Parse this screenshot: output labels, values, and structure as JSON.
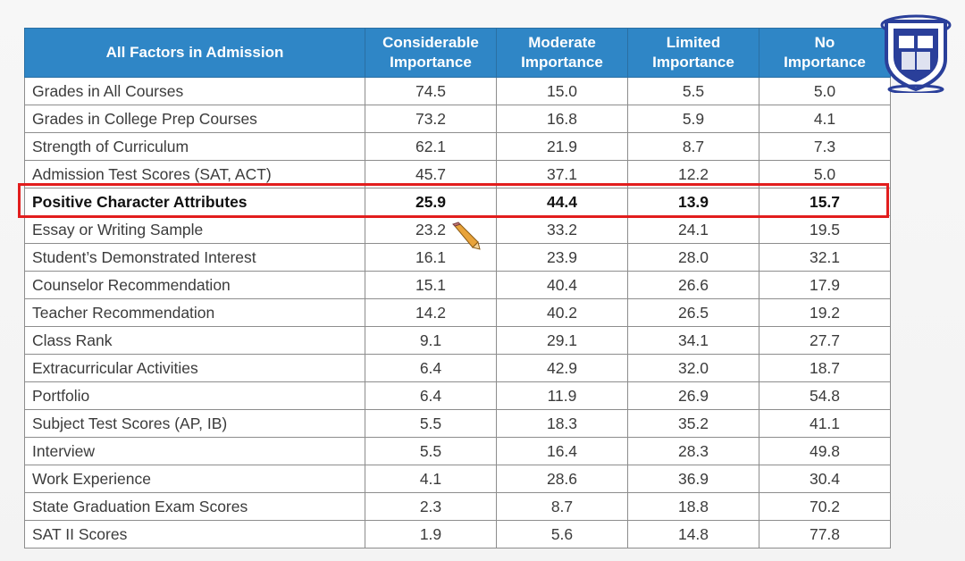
{
  "table": {
    "headers": {
      "factor": "All Factors in Admission",
      "considerable": [
        "Considerable",
        "Importance"
      ],
      "moderate": [
        "Moderate",
        "Importance"
      ],
      "limited": [
        "Limited",
        "Importance"
      ],
      "none": [
        "No",
        "Importance"
      ]
    },
    "rows": [
      {
        "factor": "Grades in All Courses",
        "considerable": "74.5",
        "moderate": "15.0",
        "limited": "5.5",
        "none": "5.0"
      },
      {
        "factor": "Grades in College Prep Courses",
        "considerable": "73.2",
        "moderate": "16.8",
        "limited": "5.9",
        "none": "4.1"
      },
      {
        "factor": "Strength of Curriculum",
        "considerable": "62.1",
        "moderate": "21.9",
        "limited": "8.7",
        "none": "7.3"
      },
      {
        "factor": "Admission Test Scores (SAT, ACT)",
        "considerable": "45.7",
        "moderate": "37.1",
        "limited": "12.2",
        "none": "5.0"
      },
      {
        "factor": "Positive Character Attributes",
        "considerable": "25.9",
        "moderate": "44.4",
        "limited": "13.9",
        "none": "15.7"
      },
      {
        "factor": "Essay or Writing Sample",
        "considerable": "23.2",
        "moderate": "33.2",
        "limited": "24.1",
        "none": "19.5"
      },
      {
        "factor": "Student’s Demonstrated Interest",
        "considerable": "16.1",
        "moderate": "23.9",
        "limited": "28.0",
        "none": "32.1"
      },
      {
        "factor": "Counselor Recommendation",
        "considerable": "15.1",
        "moderate": "40.4",
        "limited": "26.6",
        "none": "17.9"
      },
      {
        "factor": "Teacher Recommendation",
        "considerable": "14.2",
        "moderate": "40.2",
        "limited": "26.5",
        "none": "19.2"
      },
      {
        "factor": "Class Rank",
        "considerable": "9.1",
        "moderate": "29.1",
        "limited": "34.1",
        "none": "27.7"
      },
      {
        "factor": "Extracurricular Activities",
        "considerable": "6.4",
        "moderate": "42.9",
        "limited": "32.0",
        "none": "18.7"
      },
      {
        "factor": "Portfolio",
        "considerable": "6.4",
        "moderate": "11.9",
        "limited": "26.9",
        "none": "54.8"
      },
      {
        "factor": "Subject Test Scores (AP, IB)",
        "considerable": "5.5",
        "moderate": "18.3",
        "limited": "35.2",
        "none": "41.1"
      },
      {
        "factor": "Interview",
        "considerable": "5.5",
        "moderate": "16.4",
        "limited": "28.3",
        "none": "49.8"
      },
      {
        "factor": "Work Experience",
        "considerable": "4.1",
        "moderate": "28.6",
        "limited": "36.9",
        "none": "30.4"
      },
      {
        "factor": "State Graduation Exam Scores",
        "considerable": "2.3",
        "moderate": "8.7",
        "limited": "18.8",
        "none": "70.2"
      },
      {
        "factor": "SAT II Scores",
        "considerable": "1.9",
        "moderate": "5.6",
        "limited": "14.8",
        "none": "77.8"
      }
    ]
  },
  "colors": {
    "header_bg": "#2f86c6",
    "highlight_border": "#e21d1d",
    "logo_blue": "#2a3f9a"
  },
  "icons": {
    "logo": "school-crest-logo",
    "cursor": "pencil-cursor-icon"
  }
}
